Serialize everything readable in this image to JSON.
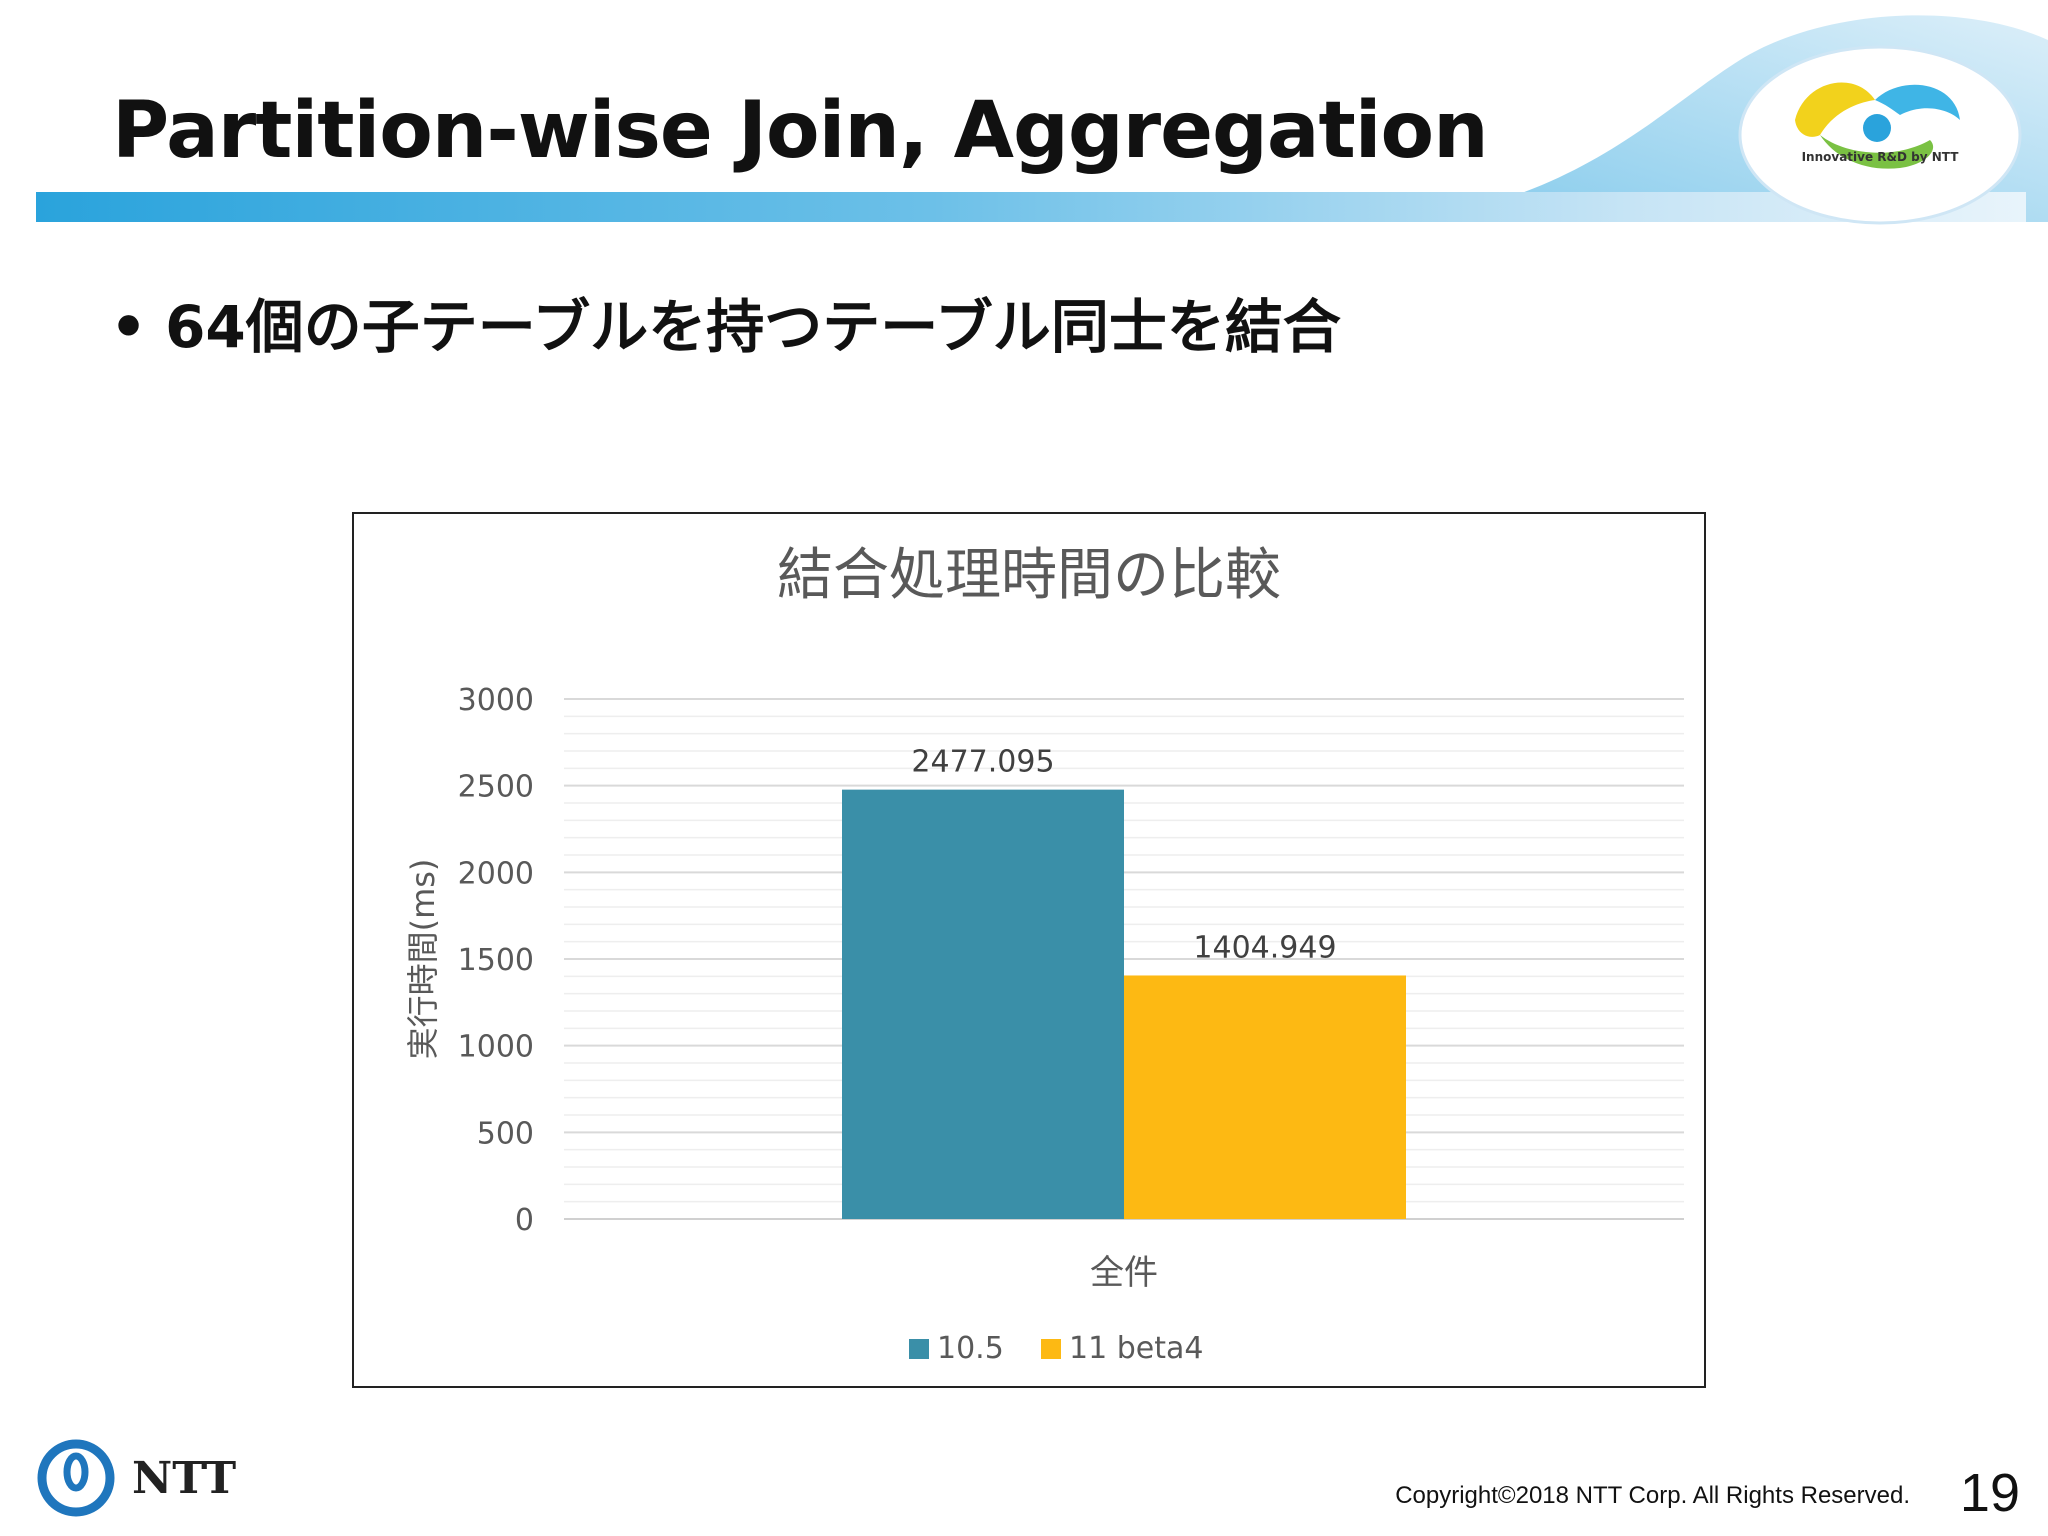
{
  "slide": {
    "title": "Partition-wise Join, Aggregation",
    "bullet": "64個の子テーブルを持つテーブル同士を結合",
    "logo_text": "Innovative R&D by NTT",
    "company_logo": "NTT",
    "copyright": "Copyright©2018  NTT Corp. All Rights Reserved.",
    "page_number": "19"
  },
  "colors": {
    "series_10_5": "#3a8fa8",
    "series_11_beta4": "#fdb913",
    "header_blue": "#2aa3dc"
  },
  "chart_data": {
    "type": "bar",
    "title": "結合処理時間の比較",
    "xlabel": "全件",
    "ylabel": "実行時間(ms)",
    "categories": [
      "全件"
    ],
    "series": [
      {
        "name": "10.5",
        "values": [
          2477.095
        ],
        "color": "#3a8fa8",
        "label": "2477.095"
      },
      {
        "name": "11 beta4",
        "values": [
          1404.949
        ],
        "color": "#fdb913",
        "label": "1404.949"
      }
    ],
    "yticks": [
      "0",
      "500",
      "1000",
      "1500",
      "2000",
      "2500",
      "3000"
    ],
    "ylim": [
      0,
      3000
    ],
    "grid": true,
    "legend": "bottom"
  }
}
